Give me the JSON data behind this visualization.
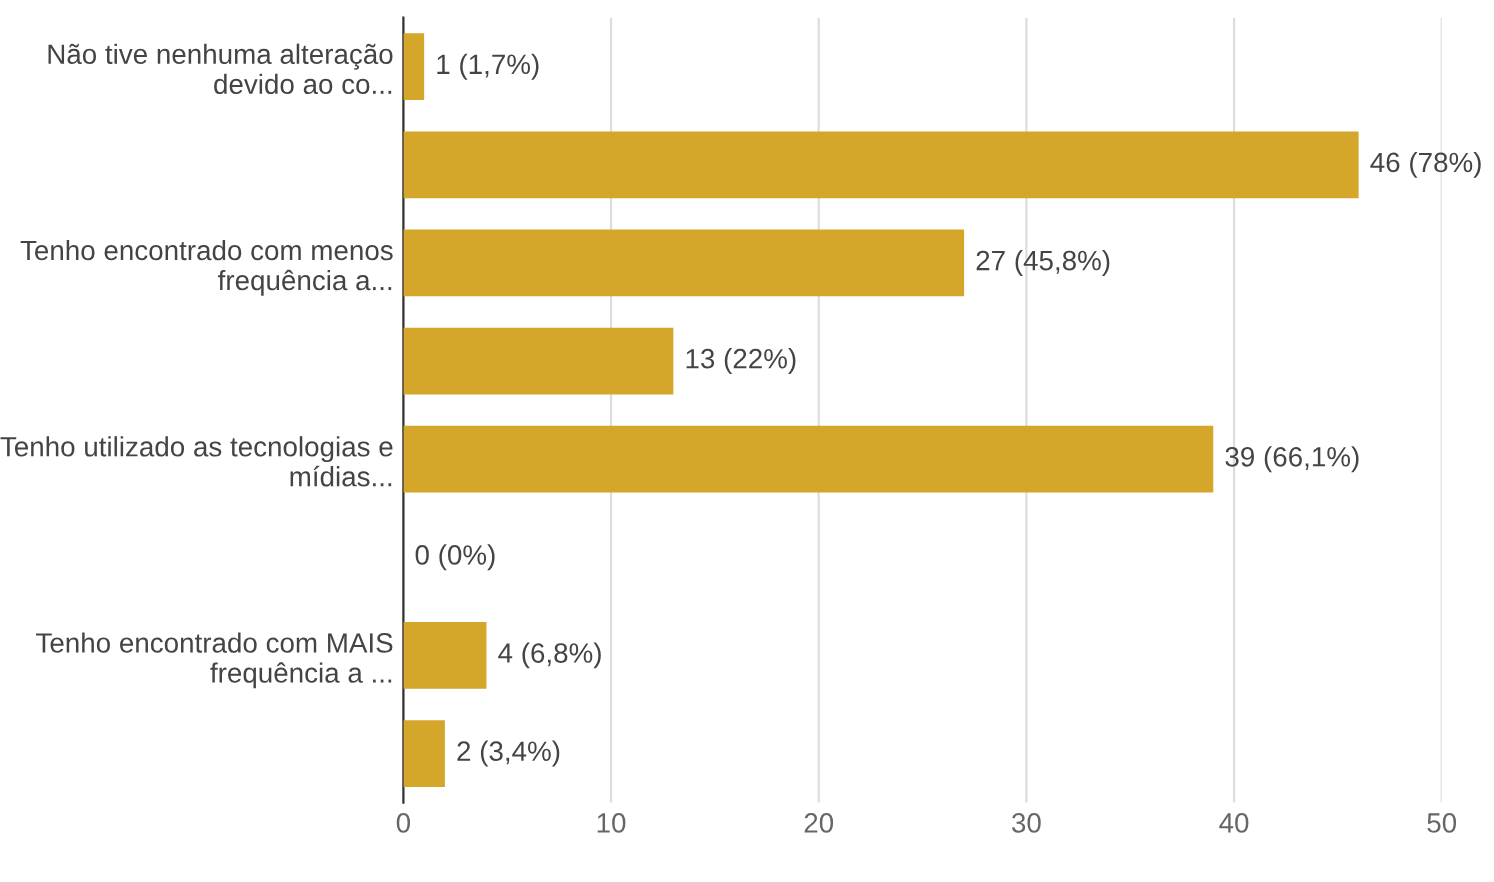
{
  "chart_data": {
    "type": "bar",
    "orientation": "horizontal",
    "categories": [
      "Não tive nenhuma alteração\ndevido ao co...",
      null,
      "Tenho encontrado com menos\nfrequência a...",
      null,
      "Tenho utilizado as tecnologias e\nmídias...",
      null,
      "Tenho encontrado com MAIS\nfrequência a ...",
      null
    ],
    "values": [
      1,
      46,
      27,
      13,
      39,
      0,
      4,
      2
    ],
    "value_labels": [
      "1 (1,7%)",
      "46 (78%)",
      "27 (45,8%)",
      "13 (22%)",
      "39 (66,1%)",
      "0 (0%)",
      "4 (6,8%)",
      "2 (3,4%)"
    ],
    "color": "#d4a62a",
    "xlim": [
      0,
      50
    ],
    "xticks": [
      0,
      10,
      20,
      30,
      40,
      50
    ],
    "grid": "x",
    "legend": false
  }
}
